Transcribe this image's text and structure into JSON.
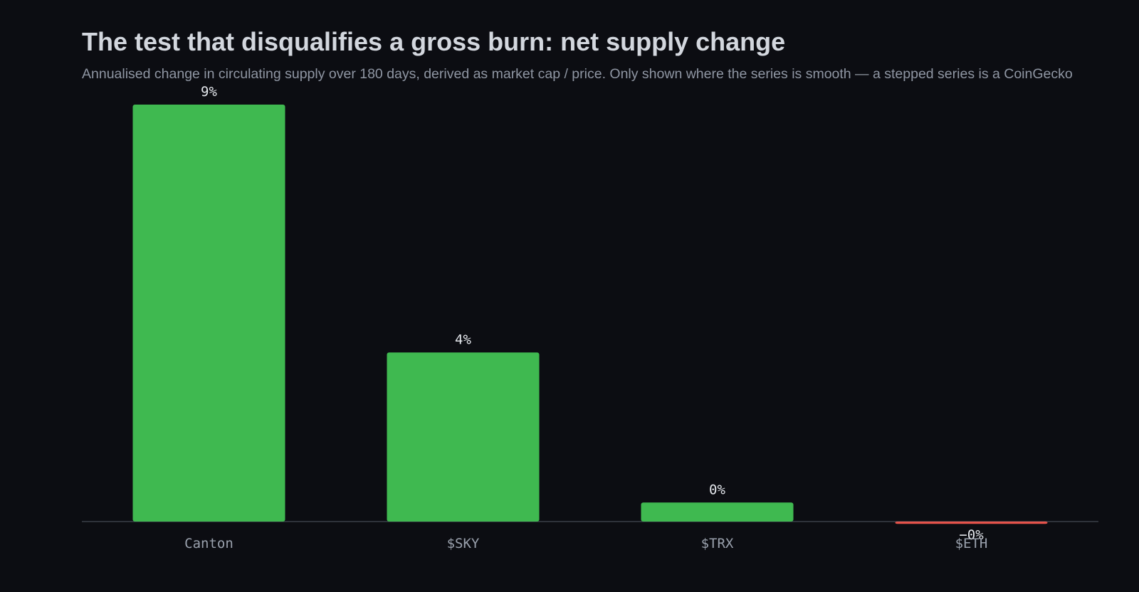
{
  "chart_data": {
    "type": "bar",
    "title": "The test that disqualifies a gross burn: net supply change",
    "subtitle": "Annualised change in circulating supply over 180 days, derived as market cap / price. Only shown where the series is smooth — a stepped series is a CoinGecko",
    "categories": [
      "Canton",
      "$SKY",
      "$TRX",
      "$ETH"
    ],
    "values": [
      9.0,
      3.65,
      0.41,
      -0.05
    ],
    "value_labels": [
      "9%",
      "4%",
      "0%",
      "−0%"
    ],
    "xlabel": "",
    "ylabel": "",
    "ylim": [
      -0.1,
      9.0
    ],
    "grid": false,
    "legend": "none",
    "colors": {
      "background": "#0c0d12",
      "positive": "#3fb950",
      "negative": "#e5534b",
      "baseline": "#3a3f47"
    }
  }
}
